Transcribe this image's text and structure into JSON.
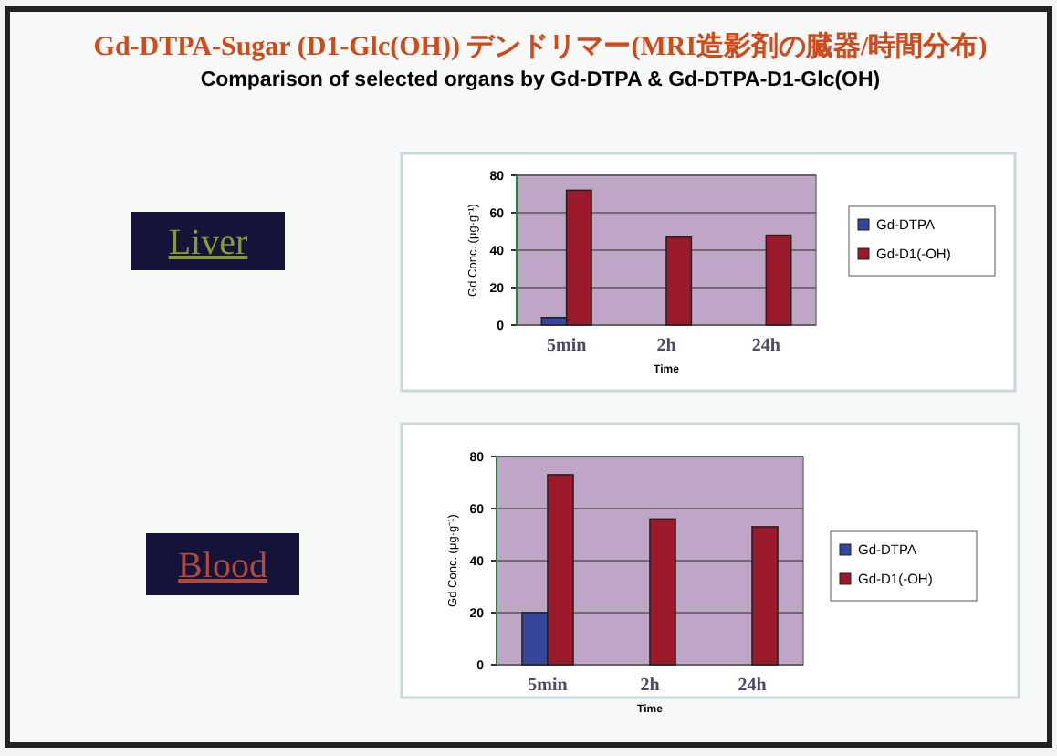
{
  "chart_data": [
    {
      "type": "bar",
      "title": "Gd-DTPA-Sugar (D1-Glc(OH)) デンドリマー(MRI造影剤の臓器/時間分布)",
      "subtitle": "Comparison of selected organs by Gd-DTPA & Gd-DTPA-D1-Glc(OH)",
      "annotations": [
        "Liver"
      ],
      "categories": [
        "5min",
        "2h",
        "24h"
      ],
      "xlabel": "Time",
      "ylabel": "Gd Conc. (μg·g⁻¹)",
      "ylim": [
        0,
        80
      ],
      "yticks": [
        0,
        20,
        40,
        60,
        80
      ],
      "grid": "y",
      "legend": "right",
      "series": [
        {
          "name": "Gd-DTPA",
          "color": "#34479a",
          "values": [
            4,
            null,
            null
          ]
        },
        {
          "name": "Gd-D1(-OH)",
          "color": "#9a1a2c",
          "values": [
            72,
            47,
            48
          ]
        }
      ]
    },
    {
      "type": "bar",
      "annotations": [
        "Blood"
      ],
      "categories": [
        "5min",
        "2h",
        "24h"
      ],
      "xlabel": "Time",
      "ylabel": "Gd Conc. (μg·g⁻¹)",
      "ylim": [
        0,
        80
      ],
      "yticks": [
        0,
        20,
        40,
        60,
        80
      ],
      "grid": "y",
      "legend": "right",
      "series": [
        {
          "name": "Gd-DTPA",
          "color": "#34479a",
          "values": [
            20,
            null,
            null
          ]
        },
        {
          "name": "Gd-D1(-OH)",
          "color": "#9a1a2c",
          "values": [
            73,
            56,
            53
          ]
        }
      ]
    }
  ]
}
